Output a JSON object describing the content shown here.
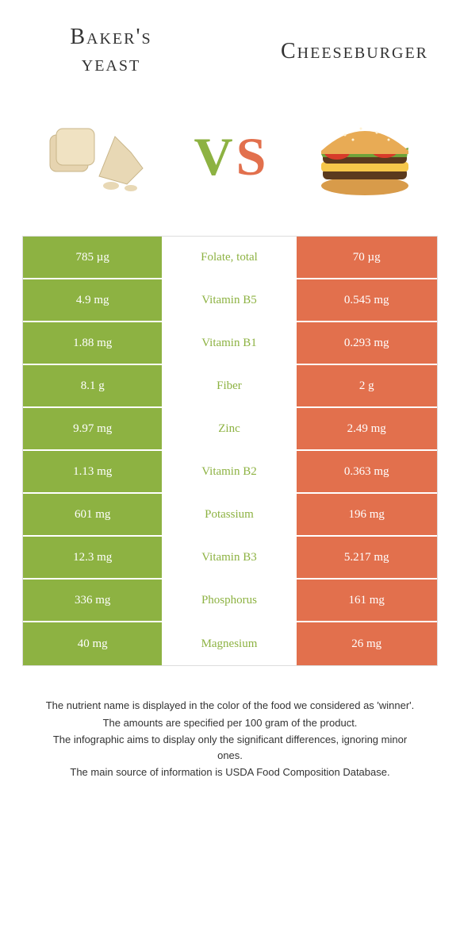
{
  "colors": {
    "left_bg": "#8db242",
    "right_bg": "#e2704d",
    "mid_bg": "#ffffff",
    "left_title": "#333333",
    "right_title": "#333333",
    "vs_v": "#8db242",
    "vs_s": "#e2704d"
  },
  "header": {
    "left_line1": "Baker's",
    "left_line2": "yeast",
    "right": "Cheeseburger"
  },
  "vs": {
    "v": "V",
    "s": "S"
  },
  "rows": [
    {
      "left": "785 µg",
      "mid": "Folate, total",
      "right": "70 µg",
      "winner": "left"
    },
    {
      "left": "4.9 mg",
      "mid": "Vitamin B5",
      "right": "0.545 mg",
      "winner": "left"
    },
    {
      "left": "1.88 mg",
      "mid": "Vitamin B1",
      "right": "0.293 mg",
      "winner": "left"
    },
    {
      "left": "8.1 g",
      "mid": "Fiber",
      "right": "2 g",
      "winner": "left"
    },
    {
      "left": "9.97 mg",
      "mid": "Zinc",
      "right": "2.49 mg",
      "winner": "left"
    },
    {
      "left": "1.13 mg",
      "mid": "Vitamin B2",
      "right": "0.363 mg",
      "winner": "left"
    },
    {
      "left": "601 mg",
      "mid": "Potassium",
      "right": "196 mg",
      "winner": "left"
    },
    {
      "left": "12.3 mg",
      "mid": "Vitamin B3",
      "right": "5.217 mg",
      "winner": "left"
    },
    {
      "left": "336 mg",
      "mid": "Phosphorus",
      "right": "161 mg",
      "winner": "left"
    },
    {
      "left": "40 mg",
      "mid": "Magnesium",
      "right": "26 mg",
      "winner": "left"
    }
  ],
  "footer": {
    "l1": "The nutrient name is displayed in the color of the food we considered as 'winner'.",
    "l2": "The amounts are specified per 100 gram of the product.",
    "l3": "The infographic aims to display only the significant differences, ignoring minor ones.",
    "l4": "The main source of information is USDA Food Composition Database."
  }
}
